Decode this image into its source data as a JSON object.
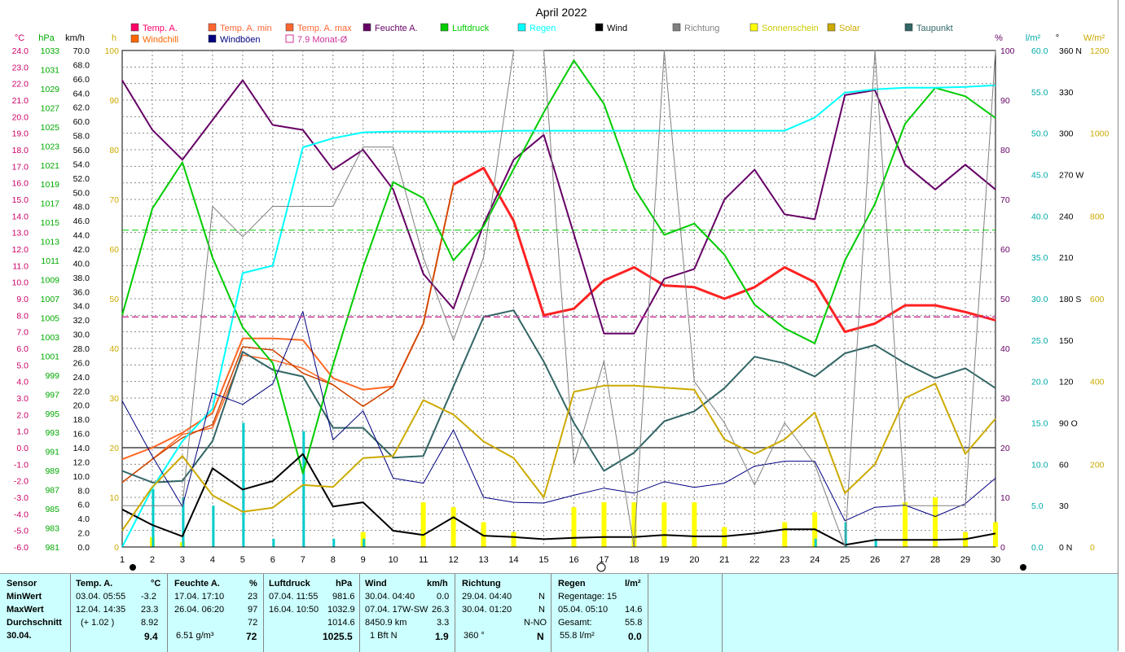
{
  "title": "April 2022",
  "axes": {
    "temp": {
      "unit": "°C",
      "ticks": [
        "24.0",
        "23.0",
        "22.0",
        "21.0",
        "20.0",
        "19.0",
        "18.0",
        "17.0",
        "16.0",
        "15.0",
        "14.0",
        "13.0",
        "12.0",
        "11.0",
        "10.0",
        "9.0",
        "8.0",
        "7.0",
        "6.0",
        "5.0",
        "4.0",
        "3.0",
        "2.0",
        "1.0",
        "0.0",
        "-1.0",
        "-2.0",
        "-3.0",
        "-4.0",
        "-5.0",
        "-6.0"
      ]
    },
    "press": {
      "unit": "hPa",
      "ticks": [
        "1033",
        "1031",
        "1029",
        "1027",
        "1025",
        "1023",
        "1021",
        "1019",
        "1017",
        "1015",
        "1013",
        "1011",
        "1009",
        "1007",
        "1005",
        "1003",
        "1001",
        "999",
        "997",
        "995",
        "993",
        "991",
        "989",
        "987",
        "985",
        "983",
        "981"
      ]
    },
    "wind": {
      "unit": "km/h",
      "ticks": [
        "70.0",
        "68.0",
        "66.0",
        "64.0",
        "62.0",
        "60.0",
        "58.0",
        "56.0",
        "54.0",
        "52.0",
        "50.0",
        "48.0",
        "46.0",
        "44.0",
        "42.0",
        "40.0",
        "38.0",
        "36.0",
        "34.0",
        "32.0",
        "30.0",
        "28.0",
        "26.0",
        "24.0",
        "22.0",
        "20.0",
        "18.0",
        "16.0",
        "14.0",
        "12.0",
        "10.0",
        "8.0",
        "6.0",
        "4.0",
        "2.0",
        "0.0"
      ]
    },
    "sun": {
      "unit": "h",
      "ticks": [
        "100",
        "90",
        "80",
        "70",
        "60",
        "50",
        "40",
        "30",
        "20",
        "10",
        "0"
      ]
    },
    "humid": {
      "unit": "%",
      "ticks": [
        "100",
        "90",
        "80",
        "70",
        "60",
        "50",
        "40",
        "30",
        "20",
        "10",
        "0"
      ]
    },
    "rain": {
      "unit": "l/m²",
      "ticks": [
        "60.0",
        "55.0",
        "50.0",
        "45.0",
        "40.0",
        "35.0",
        "30.0",
        "25.0",
        "20.0",
        "15.0",
        "10.0",
        "5.0",
        "0.0"
      ]
    },
    "dir": {
      "unit": "°",
      "ticks": [
        "360 N",
        "330",
        "300",
        "270 W",
        "240",
        "210",
        "180 S",
        "150",
        "120",
        "90 O",
        "60",
        "30",
        "0 N"
      ]
    },
    "solar": {
      "unit": "W/m²",
      "ticks": [
        "1200",
        "1000",
        "800",
        "600",
        "400",
        "200",
        "0"
      ]
    },
    "x_ticks": [
      "1",
      "2",
      "3",
      "4",
      "5",
      "6",
      "7",
      "8",
      "9",
      "10",
      "11",
      "12",
      "13",
      "14",
      "15",
      "16",
      "17",
      "18",
      "19",
      "20",
      "21",
      "22",
      "23",
      "24",
      "25",
      "26",
      "27",
      "28",
      "29",
      "30"
    ]
  },
  "legend": [
    {
      "label": "Temp. A.",
      "color": "#ff0066"
    },
    {
      "label": "Temp. A. min",
      "color": "#ff6633"
    },
    {
      "label": "Temp. A. max",
      "color": "#ff6633"
    },
    {
      "label": "Feuchte A.",
      "color": "#660066"
    },
    {
      "label": "Luftdruck",
      "color": "#00cc00"
    },
    {
      "label": "Regen",
      "color": "#00ffff"
    },
    {
      "label": "Wind",
      "color": "#000000"
    },
    {
      "label": "Richtung",
      "color": "#808080"
    },
    {
      "label": "Sonnenschein",
      "color": "#ffff00"
    },
    {
      "label": "Solar",
      "color": "#ccaa00"
    },
    {
      "label": "Taupunkt",
      "color": "#336666"
    },
    {
      "label": "Windchill",
      "color": "#ff6600"
    },
    {
      "label": "Windböen",
      "color": "#000080"
    },
    {
      "label": "7.9 Monat-Ø",
      "color": "#cc3399"
    }
  ],
  "chart_data": {
    "type": "line",
    "title": "April 2022",
    "x": [
      1,
      2,
      3,
      4,
      5,
      6,
      7,
      8,
      9,
      10,
      11,
      12,
      13,
      14,
      15,
      16,
      17,
      18,
      19,
      20,
      21,
      22,
      23,
      24,
      25,
      26,
      27,
      28,
      29,
      30
    ],
    "series": [
      {
        "name": "Temp. A.",
        "axis": "temp",
        "color": "#ff2222",
        "width": 3,
        "values": [
          null,
          null,
          null,
          null,
          null,
          null,
          null,
          null,
          null,
          null,
          null,
          15.9,
          16.9,
          13.7,
          8.0,
          8.4,
          10.1,
          10.9,
          9.8,
          9.7,
          9.0,
          9.7,
          10.9,
          10.0,
          7.0,
          7.5,
          8.6,
          8.6,
          8.2,
          7.7
        ]
      },
      {
        "name": "Temp. A. max",
        "axis": "temp",
        "color": "#ff6622",
        "width": 2,
        "values": [
          -0.7,
          0.0,
          0.9,
          2.1,
          6.6,
          6.6,
          6.5,
          4.2,
          3.5,
          3.7,
          7.5,
          15.9,
          null,
          null,
          null,
          null,
          null,
          null,
          null,
          null,
          null,
          null,
          null,
          null,
          null,
          null,
          null,
          null,
          null,
          null
        ]
      },
      {
        "name": "Temp. A. min",
        "axis": "temp",
        "color": "#ff6622",
        "width": 1.5,
        "values": [
          -2.1,
          -0.7,
          0.8,
          1.2,
          5.6,
          5.3,
          4.8,
          3.8,
          2.5,
          3.7,
          7.5,
          15.9,
          null,
          null,
          null,
          null,
          null,
          null,
          null,
          null,
          null,
          null,
          null,
          null,
          null,
          null,
          null,
          null,
          null,
          null
        ]
      },
      {
        "name": "Windchill",
        "axis": "temp",
        "color": "#cc4400",
        "width": 1.5,
        "values": [
          -2.1,
          -0.7,
          0.6,
          1.4,
          6.1,
          5.9,
          4.5,
          3.8,
          2.5,
          3.7,
          7.5,
          15.9,
          null,
          null,
          null,
          null,
          null,
          null,
          null,
          null,
          null,
          null,
          null,
          null,
          null,
          null,
          null,
          null,
          null,
          null
        ]
      },
      {
        "name": "Taupunkt",
        "axis": "temp",
        "color": "#336666",
        "width": 2,
        "values": [
          -1.4,
          -2.1,
          -2.0,
          0.4,
          5.8,
          4.7,
          4.3,
          1.2,
          1.2,
          -0.6,
          -0.5,
          3.7,
          7.9,
          8.3,
          5.2,
          1.5,
          -1.4,
          -0.3,
          1.6,
          2.2,
          3.6,
          5.5,
          5.1,
          4.3,
          5.7,
          6.2,
          5.1,
          4.2,
          4.8,
          3.6
        ]
      },
      {
        "name": "Feuchte A.",
        "axis": "humid",
        "color": "#660066",
        "width": 2,
        "values": [
          94,
          84,
          78,
          86,
          94,
          85,
          84,
          76,
          80,
          72,
          55,
          48,
          65,
          78,
          83,
          63,
          43,
          43,
          54,
          56,
          70,
          76,
          67,
          66,
          91,
          92,
          77,
          72,
          77,
          72
        ]
      },
      {
        "name": "Luftdruck",
        "axis": "press",
        "color": "#00cc00",
        "width": 2,
        "values": [
          1005.6,
          1016.9,
          1021.8,
          1011.7,
          1004.3,
          1000.5,
          988.8,
          1000.3,
          1010.7,
          1019.7,
          1018.0,
          1011.4,
          1015.0,
          1021.1,
          1027.1,
          1032.6,
          1028.0,
          1019.1,
          1014.1,
          1015.3,
          1012.0,
          1006.7,
          1004.2,
          1002.6,
          1011.4,
          1017.4,
          1025.9,
          1029.7,
          1028.8,
          1026.5
        ]
      },
      {
        "name": "Regen",
        "axis": "rain",
        "color": "#00ffff",
        "width": 2,
        "values": [
          0.0,
          7.1,
          12.8,
          16.7,
          33.1,
          34.0,
          48.3,
          49.4,
          50.1,
          50.2,
          50.2,
          50.2,
          50.2,
          50.3,
          50.3,
          50.3,
          50.3,
          50.3,
          50.3,
          50.3,
          50.3,
          50.3,
          50.3,
          51.9,
          54.9,
          55.3,
          55.5,
          55.5,
          55.6,
          55.8
        ]
      },
      {
        "name": "Wind",
        "axis": "wind",
        "color": "#000000",
        "width": 2,
        "values": [
          5.3,
          3.1,
          1.5,
          11.1,
          8.1,
          9.3,
          13.1,
          5.7,
          6.3,
          2.3,
          1.7,
          4.2,
          1.6,
          1.4,
          1.1,
          1.3,
          1.4,
          1.4,
          1.7,
          1.5,
          1.5,
          1.9,
          2.5,
          2.5,
          0.3,
          1.0,
          1.0,
          1.0,
          1.1,
          1.9
        ]
      },
      {
        "name": "Windböen",
        "axis": "wind",
        "color": "#000080",
        "width": 1,
        "values": [
          20.6,
          12.8,
          5.7,
          21.7,
          20.1,
          23.0,
          33.2,
          15.1,
          19.2,
          9.7,
          9.0,
          16.5,
          7.0,
          6.3,
          6.2,
          7.3,
          8.3,
          7.6,
          9.2,
          8.4,
          9.0,
          11.4,
          12.1,
          12.1,
          3.7,
          5.6,
          5.9,
          4.3,
          6.1,
          9.7
        ]
      },
      {
        "name": "Richtung",
        "axis": "dir",
        "color": "#808080",
        "width": 1,
        "values": [
          30,
          30,
          30,
          247,
          225,
          247,
          247,
          247,
          290,
          290,
          210,
          150,
          210,
          360,
          360,
          60,
          135,
          0,
          360,
          120,
          90,
          45,
          90,
          60,
          0,
          360,
          30,
          30,
          30,
          360
        ]
      },
      {
        "name": "Solar",
        "axis": "solar",
        "color": "#ccaa00",
        "width": 2,
        "values": [
          40,
          145,
          220,
          125,
          85,
          95,
          150,
          145,
          215,
          220,
          355,
          320,
          255,
          215,
          120,
          375,
          390,
          390,
          385,
          380,
          260,
          225,
          260,
          325,
          130,
          200,
          360,
          395,
          225,
          310
        ]
      },
      {
        "name": "7.9 Monat-Ø",
        "axis": "temp",
        "color": "#cc3399",
        "width": 1.5,
        "dashed": true,
        "const": 7.9
      },
      {
        "name": "Luftdruck Monat-Ø",
        "axis": "press",
        "color": "#00cc00",
        "width": 1,
        "dashed": true,
        "const": 1014.6
      }
    ],
    "bars": [
      {
        "name": "Sonnenschein",
        "axis": "sun",
        "color": "#ffff00",
        "values": [
          0,
          2,
          1,
          0,
          0,
          0,
          0,
          0,
          3,
          0,
          9,
          8,
          5,
          3,
          0,
          8,
          9,
          9,
          9,
          9,
          4,
          0,
          5,
          7,
          0,
          0,
          9,
          10,
          3,
          5
        ]
      },
      {
        "name": "Regen täglich",
        "axis": "rain",
        "color": "#00cccc",
        "values": [
          0,
          7,
          6,
          5,
          15,
          1,
          14,
          1,
          1,
          0,
          0,
          0,
          0,
          0,
          0,
          0,
          0,
          0,
          0,
          0,
          0,
          0,
          0,
          1,
          3,
          1,
          0,
          0,
          0,
          0
        ]
      }
    ]
  },
  "stats": {
    "sensor": {
      "h": "Sensor",
      "min": "MinWert",
      "max": "MaxWert",
      "avg": "Durchschnitt",
      "date": "30.04."
    },
    "temp": {
      "h": "Temp. A.",
      "unit": "°C",
      "min_t": "03.04.  05:55",
      "min_v": "-3.2",
      "max_t": "12.04.  14:35",
      "max_v": "23.3",
      "avg_note": "(+ 1.02 )",
      "avg_v": "8.92",
      "cur": "9.4"
    },
    "humid": {
      "h": "Feuchte A.",
      "unit": "%",
      "min_t": "17.04.  17:10",
      "min_v": "23",
      "max_t": "26.04.  06:20",
      "max_v": "97",
      "avg_v": "72",
      "abs": "6.51 g/m³",
      "cur": "72"
    },
    "press": {
      "h": "Luftdruck",
      "unit": "hPa",
      "min_t": "07.04.  11:55",
      "min_v": "981.6",
      "max_t": "16.04.  10:50",
      "max_v": "1032.9",
      "avg_v": "1014.6",
      "cur": "1025.5"
    },
    "wind": {
      "h": "Wind",
      "unit": "km/h",
      "min_t": "30.04.  04:40",
      "min_v": "0.0",
      "max_t": "07.04.  17W-SW",
      "max_v": "26.3",
      "dist": "8450.9 km",
      "avg_v": "3.3",
      "bft": "1 Bft N",
      "cur": "1.9"
    },
    "dir": {
      "h": "Richtung",
      "min_t": "29.04.  04:40",
      "min_v": "N",
      "max_t": "30.04.  01:20",
      "max_v": "N",
      "avg_v": "N-NO",
      "deg": "360 °",
      "cur": "N"
    },
    "rain": {
      "h": "Regen",
      "unit": "l/m²",
      "days": "Regentage: 15",
      "max_t": "05.04.  05:10",
      "max_v": "14.6",
      "total_l": "Gesamt:",
      "total_v": "55.8",
      "sum": "55.8 l/m²",
      "cur": "0.0"
    }
  }
}
